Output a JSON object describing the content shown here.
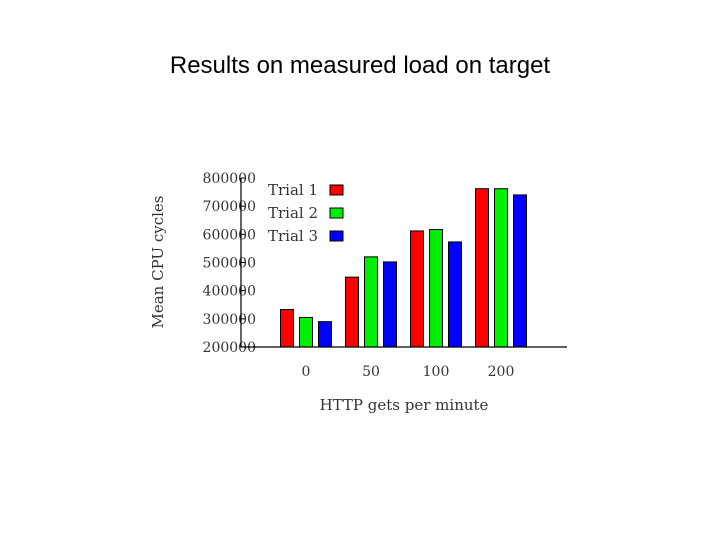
{
  "slide": {
    "title": "Results on measured load on target"
  },
  "chart_data": {
    "type": "bar",
    "title": "",
    "xlabel": "HTTP gets per minute",
    "ylabel": "Mean CPU cycles",
    "categories": [
      "0",
      "50",
      "100",
      "200"
    ],
    "ylim": [
      200000,
      800000
    ],
    "yticks": [
      200000,
      300000,
      400000,
      500000,
      600000,
      700000,
      800000
    ],
    "series": [
      {
        "name": "Trial 1",
        "color": "#ff0000",
        "values": [
          333000,
          448000,
          612000,
          762000
        ]
      },
      {
        "name": "Trial 2",
        "color": "#00ee00",
        "values": [
          305000,
          520000,
          617000,
          762000
        ]
      },
      {
        "name": "Trial 3",
        "color": "#0000ff",
        "values": [
          290000,
          502000,
          573000,
          740000
        ]
      }
    ],
    "legend_position": "top-left",
    "grid": false
  }
}
